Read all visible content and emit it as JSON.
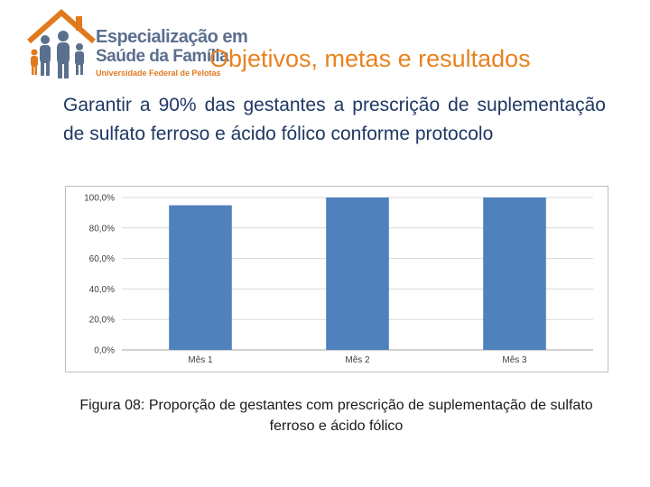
{
  "logo": {
    "line1": "Especialização em",
    "line2": "Saúde da Família",
    "line3": "Universidade Federal de Pelotas"
  },
  "title": "Objetivos, metas e resultados",
  "statement": "Garantir a 90% das gestantes a prescrição de suplementação de sulfato ferroso e ácido fólico conforme protocolo",
  "caption": "Figura 08: Proporção de gestantes com prescrição de suplementação de sulfato ferroso e ácido fólico",
  "colors": {
    "title": "#e8821e",
    "bar": "#4f81bd",
    "statement": "#1f3864"
  },
  "chart_data": {
    "type": "bar",
    "categories": [
      "Mês 1",
      "Mês 2",
      "Mês 3"
    ],
    "values": [
      94.9,
      100.0,
      100.0
    ],
    "ylim": [
      0,
      100
    ],
    "yticks": [
      0,
      20,
      40,
      60,
      80,
      100
    ],
    "ytick_labels": [
      "0,0%",
      "20,0%",
      "40,0%",
      "60,0%",
      "80,0%",
      "100,0%"
    ],
    "grid": true,
    "title": "",
    "xlabel": "",
    "ylabel": ""
  }
}
